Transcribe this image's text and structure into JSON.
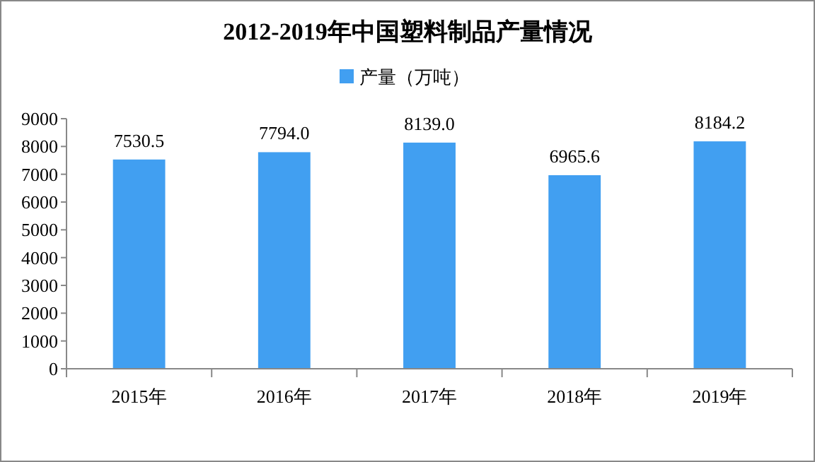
{
  "chart_data": {
    "type": "bar",
    "title": "2012-2019年中国塑料制品产量情况",
    "categories": [
      "2015年",
      "2016年",
      "2017年",
      "2018年",
      "2019年"
    ],
    "series": [
      {
        "name": "产量（万吨）",
        "color": "#419ff1",
        "values": [
          7530.5,
          7794.0,
          8139.0,
          6965.6,
          8184.2
        ]
      }
    ],
    "value_labels": [
      "7530.5",
      "7794.0",
      "8139.0",
      "6965.6",
      "8184.2"
    ],
    "ylim": [
      0,
      9000
    ],
    "yticks": [
      0,
      1000,
      2000,
      3000,
      4000,
      5000,
      6000,
      7000,
      8000,
      9000
    ],
    "grid": false,
    "legend": "top"
  }
}
